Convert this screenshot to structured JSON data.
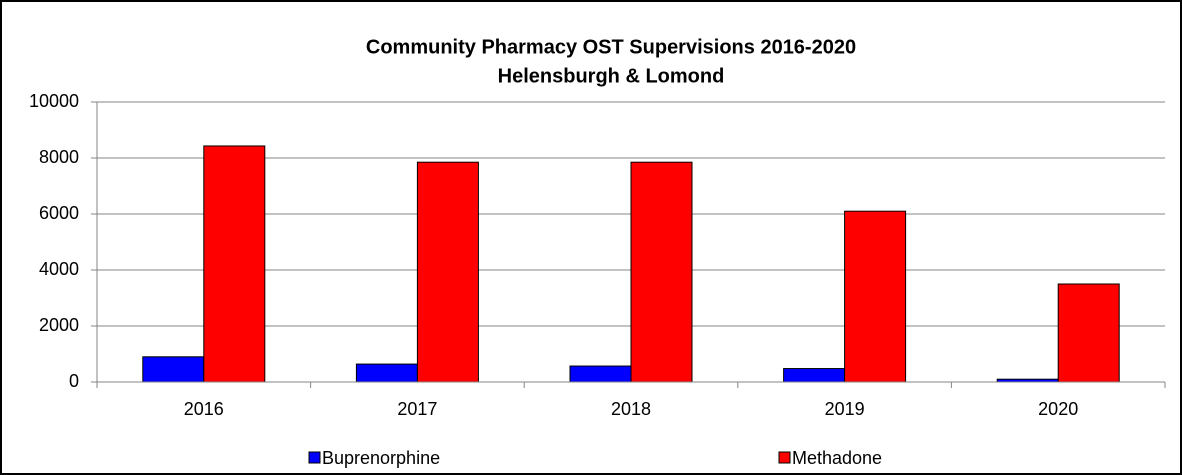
{
  "chart_data": {
    "type": "bar",
    "title": "Community Pharmacy OST Supervisions 2016-2020",
    "subtitle": "Helensburgh & Lomond",
    "categories": [
      "2016",
      "2017",
      "2018",
      "2019",
      "2020"
    ],
    "series": [
      {
        "name": "Buprenorphine",
        "color": "#0000ff",
        "values": [
          900,
          640,
          570,
          480,
          100
        ]
      },
      {
        "name": "Methadone",
        "color": "#ff0000",
        "values": [
          8430,
          7850,
          7850,
          6100,
          3500
        ]
      }
    ],
    "ylim": [
      0,
      10000
    ],
    "yticks": [
      0,
      2000,
      4000,
      6000,
      8000,
      10000
    ],
    "grid": true,
    "legend": "bottom"
  }
}
